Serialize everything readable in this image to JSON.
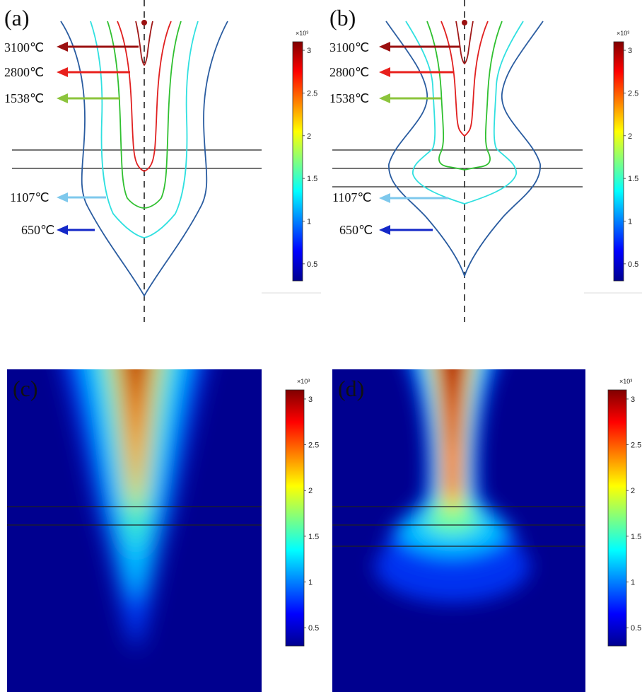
{
  "panels": [
    {
      "id": "a",
      "label": "(a)",
      "type": "contour"
    },
    {
      "id": "b",
      "label": "(b)",
      "type": "contour"
    },
    {
      "id": "c",
      "label": "(c)",
      "type": "heatmap"
    },
    {
      "id": "d",
      "label": "(d)",
      "type": "heatmap"
    }
  ],
  "isotherms": [
    {
      "label": "3100℃",
      "value": 3100,
      "color": "#9b1010"
    },
    {
      "label": "2800℃",
      "value": 2800,
      "color": "#e8201c"
    },
    {
      "label": "1538℃",
      "value": 1538,
      "color": "#8cc43c"
    },
    {
      "label": "1107℃",
      "value": 1107,
      "color": "#7ec8ec"
    },
    {
      "label": "650℃",
      "value": 650,
      "color": "#1428c8"
    }
  ],
  "contour_colors": {
    "c3100": "#a01818",
    "c2800": "#e02020",
    "c1538": "#30c030",
    "c1107": "#30e0e0",
    "c650": "#2a5ca0"
  },
  "colorbar": {
    "multiplier": "×10³",
    "ticks": [
      "3",
      "2.5",
      "2",
      "1.5",
      "1",
      "0.5"
    ],
    "tick_values": [
      3,
      2.5,
      2,
      1.5,
      1,
      0.5
    ],
    "range": [
      0.3,
      3.1
    ],
    "colormap": "jet"
  },
  "chart_data": [
    {
      "type": "contour",
      "panel": "(a)",
      "levels": [
        3100,
        2800,
        1538,
        1107,
        650
      ],
      "colorbar_range": [
        0.3,
        3.1
      ],
      "colorbar_multiplier": "×10³"
    },
    {
      "type": "contour",
      "panel": "(b)",
      "levels": [
        3100,
        2800,
        1538,
        1107,
        650
      ],
      "colorbar_range": [
        0.3,
        3.1
      ],
      "colorbar_multiplier": "×10³"
    },
    {
      "type": "heatmap",
      "panel": "(c)",
      "colormap": "jet",
      "colorbar_range": [
        0.3,
        3.1
      ],
      "colorbar_multiplier": "×10³"
    },
    {
      "type": "heatmap",
      "panel": "(d)",
      "colormap": "jet",
      "colorbar_range": [
        0.3,
        3.1
      ],
      "colorbar_multiplier": "×10³"
    }
  ]
}
